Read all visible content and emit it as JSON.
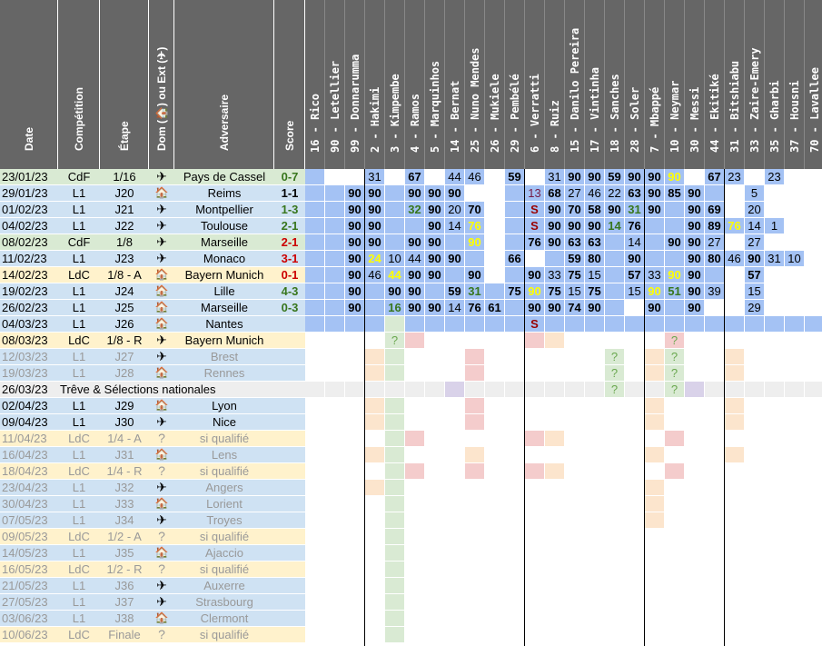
{
  "headers": {
    "date": "Date",
    "competition": "Compétition",
    "stage": "Étape",
    "home_away": "Dom (🏠) ou Ext (✈)",
    "opponent": "Adversaire",
    "score": "Score"
  },
  "players": [
    "16 - Rico",
    "90 - Letellier",
    "99 - Donnarumma",
    "2 - Hakimi",
    "3 - Kimpembe",
    "4 - Ramos",
    "5 - Marquinhos",
    "14 - Bernat",
    "25 - Nuno Mendes",
    "26 - Mukiele",
    "29 - Pembélé",
    "6 - Verratti",
    "8 - Ruiz",
    "15 - Danilo Pereira",
    "17 - Vintinha",
    "18 - Sanches",
    "28 - Soler",
    "7 - Mbappé",
    "10 - Neymar",
    "30 - Messi",
    "44 - Ekitiké",
    "31 - Bitshiabu",
    "33 - Zaire-Emery",
    "35 - Gharbi",
    "37 - Housni",
    "70 - Lavallee"
  ],
  "symbols": {
    "home": "🏠",
    "away": "✈",
    "unknown": "?",
    "suspended": "S",
    "doubt": "?"
  },
  "matches": [
    {
      "date": "23/01/23",
      "comp": "CdF",
      "stage": "1/16",
      "venue": "away",
      "opponent": "Pays de Cassel",
      "score": "0-7",
      "result": "win",
      "bg": "#d9ead3",
      "cells": [
        "b",
        "",
        "",
        "31",
        "",
        "67",
        "",
        "44",
        "46",
        "",
        "59",
        "",
        "31",
        "90",
        "90",
        "59",
        "90",
        "90",
        "90y",
        "",
        "67",
        "23",
        "",
        "23",
        "",
        ""
      ]
    },
    {
      "date": "29/01/23",
      "comp": "L1",
      "stage": "J20",
      "venue": "home",
      "opponent": "Reims",
      "score": "1-1",
      "result": "draw",
      "bg": "#cfe2f3",
      "cells": [
        "b",
        "b",
        "90",
        "90",
        "b",
        "90",
        "90",
        "90",
        "",
        "",
        "b",
        "13p",
        "68",
        "27",
        "46",
        "22",
        "63",
        "90",
        "85",
        "90",
        "b",
        "",
        "5",
        "",
        "",
        ""
      ]
    },
    {
      "date": "01/02/23",
      "comp": "L1",
      "stage": "J21",
      "venue": "away",
      "opponent": "Montpellier",
      "score": "1-3",
      "result": "win",
      "bg": "#cfe2f3",
      "cells": [
        "b",
        "b",
        "90",
        "90",
        "b",
        "32g",
        "90",
        "20",
        "70",
        "",
        "b",
        "Sr",
        "90",
        "70",
        "58",
        "90",
        "31g",
        "90",
        "b",
        "90",
        "69",
        "",
        "20",
        "",
        "",
        ""
      ]
    },
    {
      "date": "04/02/23",
      "comp": "L1",
      "stage": "J22",
      "venue": "away",
      "opponent": "Toulouse",
      "score": "2-1",
      "result": "win",
      "bg": "#cfe2f3",
      "cells": [
        "b",
        "b",
        "90",
        "90",
        "b",
        "b",
        "90",
        "14",
        "76y",
        "",
        "b",
        "Sr",
        "90",
        "90",
        "90",
        "14g",
        "76",
        "b",
        "b",
        "90",
        "89",
        "76y",
        "14",
        "1",
        "",
        ""
      ]
    },
    {
      "date": "08/02/23",
      "comp": "CdF",
      "stage": "1/8",
      "venue": "away",
      "opponent": "Marseille",
      "score": "2-1",
      "result": "loss",
      "bg": "#d9ead3",
      "cells": [
        "b",
        "b",
        "90",
        "90",
        "b",
        "90",
        "90",
        "b",
        "90y",
        "",
        "b",
        "76",
        "90",
        "63",
        "63",
        "b",
        "14",
        "b",
        "90",
        "90",
        "27",
        "",
        "27",
        "",
        "",
        ""
      ]
    },
    {
      "date": "11/02/23",
      "comp": "L1",
      "stage": "J23",
      "venue": "away",
      "opponent": "Monaco",
      "score": "3-1",
      "result": "loss",
      "bg": "#cfe2f3",
      "cells": [
        "b",
        "b",
        "90",
        "24y",
        "10",
        "44",
        "90",
        "90",
        "b",
        "",
        "66",
        "",
        "b",
        "59",
        "80",
        "b",
        "90",
        "b",
        "b",
        "90",
        "80",
        "46",
        "90",
        "31",
        "10",
        ""
      ]
    },
    {
      "date": "14/02/23",
      "comp": "LdC",
      "stage": "1/8 - A",
      "venue": "home",
      "opponent": "Bayern Munich",
      "score": "0-1",
      "result": "loss",
      "bg": "#fff2cc",
      "cells": [
        "b",
        "b",
        "90",
        "46",
        "44y",
        "90",
        "90",
        "b",
        "90",
        "",
        "b",
        "90",
        "33",
        "75",
        "15",
        "b",
        "57",
        "33",
        "90y",
        "90",
        "b",
        "",
        "57",
        "",
        "",
        ""
      ]
    },
    {
      "date": "19/02/23",
      "comp": "L1",
      "stage": "J24",
      "venue": "home",
      "opponent": "Lille",
      "score": "4-3",
      "result": "win",
      "bg": "#cfe2f3",
      "cells": [
        "b",
        "b",
        "90",
        "b",
        "90",
        "90",
        "b",
        "59",
        "31g",
        "b",
        "75",
        "90y",
        "75",
        "15",
        "75",
        "b",
        "15",
        "90y",
        "51g",
        "90",
        "39",
        "",
        "15",
        "",
        "",
        ""
      ]
    },
    {
      "date": "26/02/23",
      "comp": "L1",
      "stage": "J25",
      "venue": "home",
      "opponent": "Marseille",
      "score": "0-3",
      "result": "win",
      "bg": "#cfe2f3",
      "cells": [
        "b",
        "b",
        "90",
        "b",
        "16g",
        "90",
        "90",
        "14",
        "76",
        "61",
        "b",
        "90",
        "90",
        "74",
        "90",
        "b",
        "",
        "90",
        "b",
        "90",
        "",
        "",
        "29",
        "",
        "",
        ""
      ]
    },
    {
      "date": "04/03/23",
      "comp": "L1",
      "stage": "J26",
      "venue": "home",
      "opponent": "Nantes",
      "score": "",
      "result": "",
      "bg": "#cfe2f3",
      "cells": [
        "b",
        "b",
        "b",
        "b",
        "g",
        "b",
        "b",
        "b",
        "b",
        "b",
        "b",
        "Sr",
        "b",
        "b",
        "b",
        "b",
        "b",
        "b",
        "b",
        "b",
        "b",
        "b",
        "b",
        "b",
        "b",
        "b"
      ]
    },
    {
      "date": "08/03/23",
      "comp": "LdC",
      "stage": "1/8 - R",
      "venue": "away",
      "opponent": "Bayern Munich",
      "score": "",
      "result": "",
      "bg": "#fff2cc",
      "cells": [
        "",
        "",
        "",
        "",
        "q",
        "r",
        "",
        "",
        "",
        "",
        "",
        "r",
        "o",
        "",
        "",
        "",
        "",
        "",
        "qr",
        "",
        "",
        "",
        "",
        "",
        "",
        ""
      ]
    },
    {
      "date": "12/03/23",
      "comp": "L1",
      "stage": "J27",
      "venue": "away",
      "opponent": "Brest",
      "score": "",
      "result": "",
      "bg": "#cfe2f3",
      "faded": true,
      "cells": [
        "",
        "",
        "",
        "o",
        "g",
        "",
        "",
        "",
        "r",
        "",
        "",
        "",
        "",
        "",
        "",
        "q",
        "",
        "o",
        "q",
        "",
        "",
        "o",
        "",
        "",
        "",
        ""
      ]
    },
    {
      "date": "19/03/23",
      "comp": "L1",
      "stage": "J28",
      "venue": "home",
      "opponent": "Rennes",
      "score": "",
      "result": "",
      "bg": "#cfe2f3",
      "faded": true,
      "cells": [
        "",
        "",
        "",
        "o",
        "g",
        "",
        "",
        "",
        "r",
        "",
        "",
        "",
        "",
        "",
        "",
        "q",
        "",
        "o",
        "q",
        "",
        "",
        "o",
        "",
        "",
        "",
        ""
      ]
    },
    {
      "date": "26/03/23",
      "comp": "",
      "stage": "",
      "venue": "",
      "opponent": "Trêve & Sélections nationales",
      "score": "",
      "result": "",
      "bg": "#eeeeee",
      "span": true,
      "cells": [
        "e",
        "e",
        "e",
        "e",
        "e",
        "e",
        "e",
        "p",
        "e",
        "e",
        "e",
        "e",
        "e",
        "e",
        "e",
        "q",
        "e",
        "e",
        "q",
        "p",
        "e",
        "e",
        "e",
        "e",
        "e",
        "e"
      ]
    },
    {
      "date": "02/04/23",
      "comp": "L1",
      "stage": "J29",
      "venue": "home",
      "opponent": "Lyon",
      "score": "",
      "result": "",
      "bg": "#cfe2f3",
      "cells": [
        "",
        "",
        "",
        "o",
        "g",
        "",
        "",
        "",
        "r",
        "",
        "",
        "",
        "",
        "",
        "",
        "",
        "",
        "o",
        "",
        "",
        "",
        "o",
        "",
        "",
        "",
        ""
      ]
    },
    {
      "date": "09/04/23",
      "comp": "L1",
      "stage": "J30",
      "venue": "away",
      "opponent": "Nice",
      "score": "",
      "result": "",
      "bg": "#cfe2f3",
      "cells": [
        "",
        "",
        "",
        "o",
        "g",
        "",
        "",
        "",
        "r",
        "",
        "",
        "",
        "",
        "",
        "",
        "",
        "",
        "o",
        "",
        "",
        "",
        "o",
        "",
        "",
        "",
        ""
      ]
    },
    {
      "date": "11/04/23",
      "comp": "LdC",
      "stage": "1/4 - A",
      "venue": "unknown",
      "opponent": "si qualifié",
      "score": "",
      "result": "",
      "bg": "#fff2cc",
      "faded": true,
      "cells": [
        "",
        "",
        "",
        "",
        "g",
        "r",
        "",
        "",
        "",
        "",
        "",
        "r",
        "o",
        "",
        "",
        "",
        "",
        "",
        "r",
        "",
        "",
        "",
        "",
        "",
        "",
        ""
      ]
    },
    {
      "date": "16/04/23",
      "comp": "L1",
      "stage": "J31",
      "venue": "home",
      "opponent": "Lens",
      "score": "",
      "result": "",
      "bg": "#cfe2f3",
      "faded": true,
      "cells": [
        "",
        "",
        "",
        "o",
        "g",
        "",
        "",
        "",
        "o",
        "",
        "",
        "",
        "",
        "",
        "",
        "",
        "",
        "o",
        "",
        "",
        "",
        "o",
        "",
        "",
        "",
        ""
      ]
    },
    {
      "date": "18/04/23",
      "comp": "LdC",
      "stage": "1/4 - R",
      "venue": "unknown",
      "opponent": "si qualifié",
      "score": "",
      "result": "",
      "bg": "#fff2cc",
      "faded": true,
      "cells": [
        "",
        "",
        "",
        "",
        "g",
        "r",
        "",
        "",
        "r",
        "",
        "",
        "r",
        "o",
        "",
        "",
        "",
        "",
        "",
        "r",
        "",
        "",
        "",
        "",
        "",
        "",
        ""
      ]
    },
    {
      "date": "23/04/23",
      "comp": "L1",
      "stage": "J32",
      "venue": "away",
      "opponent": "Angers",
      "score": "",
      "result": "",
      "bg": "#cfe2f3",
      "faded": true,
      "cells": [
        "",
        "",
        "",
        "o",
        "g",
        "",
        "",
        "",
        "",
        "",
        "",
        "",
        "",
        "",
        "",
        "",
        "",
        "o",
        "",
        "",
        "",
        "",
        "",
        "",
        "",
        ""
      ]
    },
    {
      "date": "30/04/23",
      "comp": "L1",
      "stage": "J33",
      "venue": "home",
      "opponent": "Lorient",
      "score": "",
      "result": "",
      "bg": "#cfe2f3",
      "faded": true,
      "cells": [
        "",
        "",
        "",
        "",
        "g",
        "",
        "",
        "",
        "",
        "",
        "",
        "",
        "",
        "",
        "",
        "",
        "",
        "o",
        "",
        "",
        "",
        "",
        "",
        "",
        "",
        ""
      ]
    },
    {
      "date": "07/05/23",
      "comp": "L1",
      "stage": "J34",
      "venue": "away",
      "opponent": "Troyes",
      "score": "",
      "result": "",
      "bg": "#cfe2f3",
      "faded": true,
      "cells": [
        "",
        "",
        "",
        "",
        "g",
        "",
        "",
        "",
        "",
        "",
        "",
        "",
        "",
        "",
        "",
        "",
        "",
        "o",
        "",
        "",
        "",
        "",
        "",
        "",
        "",
        ""
      ]
    },
    {
      "date": "09/05/23",
      "comp": "LdC",
      "stage": "1/2 - A",
      "venue": "unknown",
      "opponent": "si qualifié",
      "score": "",
      "result": "",
      "bg": "#fff2cc",
      "faded": true,
      "cells": [
        "",
        "",
        "",
        "",
        "g",
        "",
        "",
        "",
        "",
        "",
        "",
        "",
        "",
        "",
        "",
        "",
        "",
        "",
        "",
        "",
        "",
        "",
        "",
        "",
        "",
        ""
      ]
    },
    {
      "date": "14/05/23",
      "comp": "L1",
      "stage": "J35",
      "venue": "home",
      "opponent": "Ajaccio",
      "score": "",
      "result": "",
      "bg": "#cfe2f3",
      "faded": true,
      "cells": [
        "",
        "",
        "",
        "",
        "g",
        "",
        "",
        "",
        "",
        "",
        "",
        "",
        "",
        "",
        "",
        "",
        "",
        "",
        "",
        "",
        "",
        "",
        "",
        "",
        "",
        ""
      ]
    },
    {
      "date": "16/05/23",
      "comp": "LdC",
      "stage": "1/2 - R",
      "venue": "unknown",
      "opponent": "si qualifié",
      "score": "",
      "result": "",
      "bg": "#fff2cc",
      "faded": true,
      "cells": [
        "",
        "",
        "",
        "",
        "g",
        "",
        "",
        "",
        "",
        "",
        "",
        "",
        "",
        "",
        "",
        "",
        "",
        "",
        "",
        "",
        "",
        "",
        "",
        "",
        "",
        ""
      ]
    },
    {
      "date": "21/05/23",
      "comp": "L1",
      "stage": "J36",
      "venue": "away",
      "opponent": "Auxerre",
      "score": "",
      "result": "",
      "bg": "#cfe2f3",
      "faded": true,
      "cells": [
        "",
        "",
        "",
        "",
        "g",
        "",
        "",
        "",
        "",
        "",
        "",
        "",
        "",
        "",
        "",
        "",
        "",
        "",
        "",
        "",
        "",
        "",
        "",
        "",
        "",
        ""
      ]
    },
    {
      "date": "27/05/23",
      "comp": "L1",
      "stage": "J37",
      "venue": "away",
      "opponent": "Strasbourg",
      "score": "",
      "result": "",
      "bg": "#cfe2f3",
      "faded": true,
      "cells": [
        "",
        "",
        "",
        "",
        "g",
        "",
        "",
        "",
        "",
        "",
        "",
        "",
        "",
        "",
        "",
        "",
        "",
        "",
        "",
        "",
        "",
        "",
        "",
        "",
        "",
        ""
      ]
    },
    {
      "date": "03/06/23",
      "comp": "L1",
      "stage": "J38",
      "venue": "home",
      "opponent": "Clermont",
      "score": "",
      "result": "",
      "bg": "#cfe2f3",
      "faded": true,
      "cells": [
        "",
        "",
        "",
        "",
        "g",
        "",
        "",
        "",
        "",
        "",
        "",
        "",
        "",
        "",
        "",
        "",
        "",
        "",
        "",
        "",
        "",
        "",
        "",
        "",
        "",
        ""
      ]
    },
    {
      "date": "10/06/23",
      "comp": "LdC",
      "stage": "Finale",
      "venue": "unknown",
      "opponent": "si qualifié",
      "score": "",
      "result": "",
      "bg": "#fff2cc",
      "faded": true,
      "cells": [
        "",
        "",
        "",
        "",
        "g",
        "",
        "",
        "",
        "",
        "",
        "",
        "",
        "",
        "",
        "",
        "",
        "",
        "",
        "",
        "",
        "",
        "",
        "",
        "",
        "",
        ""
      ]
    }
  ],
  "colors": {
    "header_bg": "#666666",
    "played_blue": "#a4c2f4",
    "light_blue": "#c9daf8",
    "green": "#d9ead3",
    "red": "#f4cccc",
    "orange": "#fce5cd",
    "purple": "#d9d2e9",
    "score_win": "#38761d",
    "score_draw": "#000000",
    "score_loss": "#cc0000",
    "yellow_text": "#ffff00",
    "green_text": "#38761d",
    "purple_text": "#741b47",
    "suspended_text": "#990000",
    "faded_text": "#999999"
  }
}
